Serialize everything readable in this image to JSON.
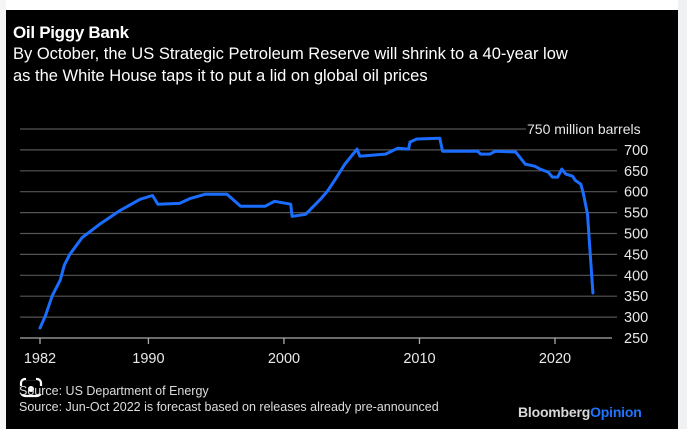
{
  "chart_data": {
    "type": "line",
    "title": "Oil Piggy Bank",
    "subtitle": "By October, the US Strategic Petroleum Reserve will shrink to a 40-year low as the White House taps it to put a lid on global oil prices",
    "subtitle_lines": [
      "By October, the US Strategic Petroleum Reserve will shrink to a 40-year low",
      "as the White House taps it to put a lid on global oil prices"
    ],
    "xlabel": "",
    "ylabel": "",
    "unit_label": "750 million barrels",
    "xlim": [
      1980.6,
      2025.7
    ],
    "ylim": [
      250,
      750
    ],
    "x_ticks": [
      1982,
      1990,
      2000,
      2010,
      2020
    ],
    "x_tick_labels": [
      "1982",
      "1990",
      "2000",
      "2010",
      "2020"
    ],
    "y_ticks": [
      250,
      300,
      350,
      400,
      450,
      500,
      550,
      600,
      650,
      700,
      750
    ],
    "y_tick_labels": [
      "250",
      "300",
      "350",
      "400",
      "450",
      "500",
      "550",
      "600",
      "650",
      "700",
      "750 million barrels"
    ],
    "grid": true,
    "y_axis_side": "right",
    "series": [
      {
        "name": "US Strategic Petroleum Reserve",
        "color": "#1a6dff",
        "x": [
          1982.0,
          1982.4,
          1982.9,
          1983.5,
          1983.8,
          1984.2,
          1985.1,
          1986.4,
          1987.9,
          1989.4,
          1990.3,
          1990.7,
          1992.3,
          1993.1,
          1994.2,
          1995.8,
          1996.8,
          1998.6,
          1999.3,
          2000.5,
          2000.6,
          2001.6,
          2002.7,
          2003.2,
          2003.8,
          2004.5,
          2005.4,
          2005.6,
          2007.5,
          2008.4,
          2009.2,
          2009.3,
          2009.8,
          2011.5,
          2011.7,
          2014.3,
          2014.5,
          2015.2,
          2015.6,
          2017.1,
          2017.8,
          2018.5,
          2018.9,
          2019.5,
          2019.8,
          2020.2,
          2020.5,
          2020.8,
          2021.3,
          2021.5,
          2021.9,
          2022.1,
          2022.4,
          2022.8
        ],
        "values": [
          274,
          303,
          351,
          389,
          425,
          450,
          490,
          522,
          555,
          582,
          591,
          570,
          572,
          584,
          594,
          594,
          565,
          565,
          577,
          570,
          541,
          546,
          582,
          601,
          630,
          666,
          702,
          685,
          690,
          704,
          702,
          719,
          726,
          728,
          697,
          697,
          690,
          690,
          697,
          695,
          666,
          661,
          654,
          647,
          635,
          635,
          654,
          642,
          637,
          627,
          618,
          594,
          546,
          358
        ]
      }
    ],
    "annotations": [
      "Jun-Oct 2022 is forecast based on releases already pre-announced"
    ]
  },
  "footer": {
    "source_line1": "Source: US Department of Energy",
    "source_line2": "Source: Jun-Oct 2022 is forecast based on releases already pre-announced",
    "brand_part1": "Bloomberg",
    "brand_part2": "Opinion"
  },
  "colors": {
    "background": "#000000",
    "line": "#1a6dff",
    "grid": "#555555",
    "text": "#ffffff",
    "brand_accent": "#1f74ff"
  }
}
